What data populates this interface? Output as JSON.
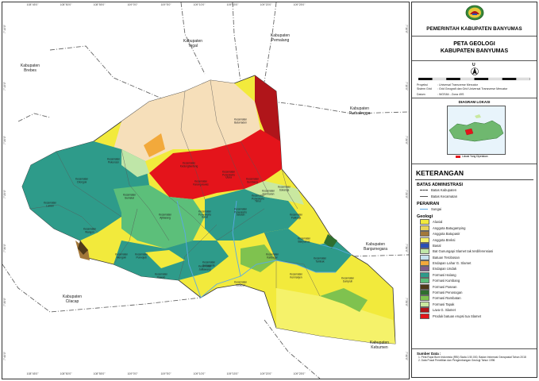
{
  "map": {
    "coords_top": [
      "108°45'0\"",
      "108°50'0\"",
      "108°55'0\"",
      "109°0'0\"",
      "109°5'0\"",
      "109°10'0\"",
      "109°15'0\"",
      "109°20'0\"",
      "109°25'0\""
    ],
    "coords_bottom": [
      "108°45'0\"",
      "108°50'0\"",
      "108°55'0\"",
      "109°0'0\"",
      "109°5'0\"",
      "109°10'0\"",
      "109°15'0\"",
      "109°20'0\"",
      "109°25'0\""
    ],
    "coords_left": [
      "7°10'0\"",
      "7°15'0\"",
      "7°20'0\"",
      "7°25'0\"",
      "7°30'0\"",
      "7°35'0\"",
      "7°40'0\""
    ],
    "coords_right": [
      "7°10'0\"",
      "7°15'0\"",
      "7°20'0\"",
      "7°25'0\"",
      "7°30'0\"",
      "7°35'0\"",
      "7°40'0\""
    ],
    "neighbors": [
      {
        "name": "Kabupaten\nTegal"
      },
      {
        "name": "Kabupaten\nPemalang"
      },
      {
        "name": "Kabupaten\nBrebes"
      },
      {
        "name": "Kabupaten\nPurbalingga"
      },
      {
        "name": "Kabupaten\nBanjarnegara"
      },
      {
        "name": "Kabupaten\nCilacap"
      },
      {
        "name": "Kabupaten\nKebumen"
      }
    ],
    "kecamatan": [
      "Kecamatan\nCilongok",
      "Kecamatan\nKarang-lewas",
      "Kecamatan\nBaturraden",
      "Kecamatan\nSumbang",
      "Kecamatan\nKedungbanteng",
      "Kecamatan\nAjibarang",
      "Kecamatan\nPekuncen",
      "Kecamatan\nGumelar",
      "Kecamatan\nLumbir",
      "Kecamatan\nWangon",
      "Kecamatan\nJatilawang",
      "Kecamatan\nRawalo",
      "Kecamatan\nKebasen",
      "Kecamatan\nKemranjen",
      "Kecamatan\nSumpiuh",
      "Kecamatan\nTambak",
      "Kecamatan\nSomagede",
      "Kecamatan\nKalibagor",
      "Kecamatan\nBanyumas",
      "Kecamatan\nPatikraja",
      "Kecamatan\nPurwojati",
      "Kecamatan\nPurwokerto\nUtara",
      "Kecamatan\nPurwokerto\nTimur",
      "Kecamatan\nSokaraja",
      "Kecamatan\nKembaran",
      "Kecamatan\nPurwokerto\nSelatan",
      "Kecamatan\nPurwokerto\nBarat",
      "Kecamatan\nMengoin"
    ]
  },
  "legend": {
    "government": "PEMERINTAH KABUPATEN BANYUMAS",
    "title_1": "PETA GEOLOGI",
    "title_2": "KABUPATEN BANYUMAS",
    "north": "U",
    "projection": [
      {
        "key": "Proyeksi",
        "value": ": Universal Transverse Mercator"
      },
      {
        "key": "Sistem Grid",
        "value": ": Grid Geografi dan Grid Universal Transverse Mercator"
      },
      {
        "key": "Datum",
        "value": ": WGS84 - Zona 49S"
      }
    ],
    "locator_title": "DIAGRAM LOKASI",
    "locator_note": "Lokasi Yang Dipetakan",
    "keterangan": "KETERANGAN",
    "admin_head": "BATAS ADMINISTRASI",
    "admin_items": [
      {
        "label": "Batas Kabupaten",
        "style": "dashdot"
      },
      {
        "label": "Batas Kecamatan",
        "style": "solid"
      }
    ],
    "water_head": "PERAIRAN",
    "water_items": [
      {
        "label": "Sungai",
        "color": "#5aa9e6"
      }
    ],
    "geo_head": "Geologi",
    "geo_items": [
      {
        "label": "Aluvial",
        "color": "#f2ea3c"
      },
      {
        "label": "Anggota Batugamping",
        "color": "#e8d45a"
      },
      {
        "label": "Anggota Batupasir",
        "color": "#a3783a"
      },
      {
        "label": "Anggota Breksi",
        "color": "#f5f26a"
      },
      {
        "label": "Basal",
        "color": "#2b4fb5"
      },
      {
        "label": "Bat Gunungapi Slamet tak terdiferensiasi",
        "color": "#bfe6a8"
      },
      {
        "label": "Batuan Terobosan",
        "color": "#c6e2ef"
      },
      {
        "label": "Endapan Lahar G. Slamet",
        "color": "#f2a93b"
      },
      {
        "label": "Endapan Undak",
        "color": "#7e5b8a"
      },
      {
        "label": "Formasi Halang",
        "color": "#2e9b8a"
      },
      {
        "label": "Formasi Kumbang",
        "color": "#5cbf7a"
      },
      {
        "label": "Formasi Pasean",
        "color": "#4f3a1a"
      },
      {
        "label": "Formasi Penosogan",
        "color": "#2f6f2f"
      },
      {
        "label": "Formasi Rambatan",
        "color": "#7fc24f"
      },
      {
        "label": "Formasi Tapak",
        "color": "#c9e8a0"
      },
      {
        "label": "Lava G. Slamet",
        "color": "#b0151a"
      },
      {
        "label": "Produk batuan erupsi tua Slamet",
        "color": "#e4141b"
      }
    ],
    "source_head": "Sumber Data :",
    "sources": [
      "1. Peta Rupa Bumi Indonesia (RBI) Skala 1:50.000, Badan Informasi Geospasial Tahun 2018",
      "2. Data Pusat Penelitian dan Pengembangan Geologi Tahun 1996"
    ]
  }
}
